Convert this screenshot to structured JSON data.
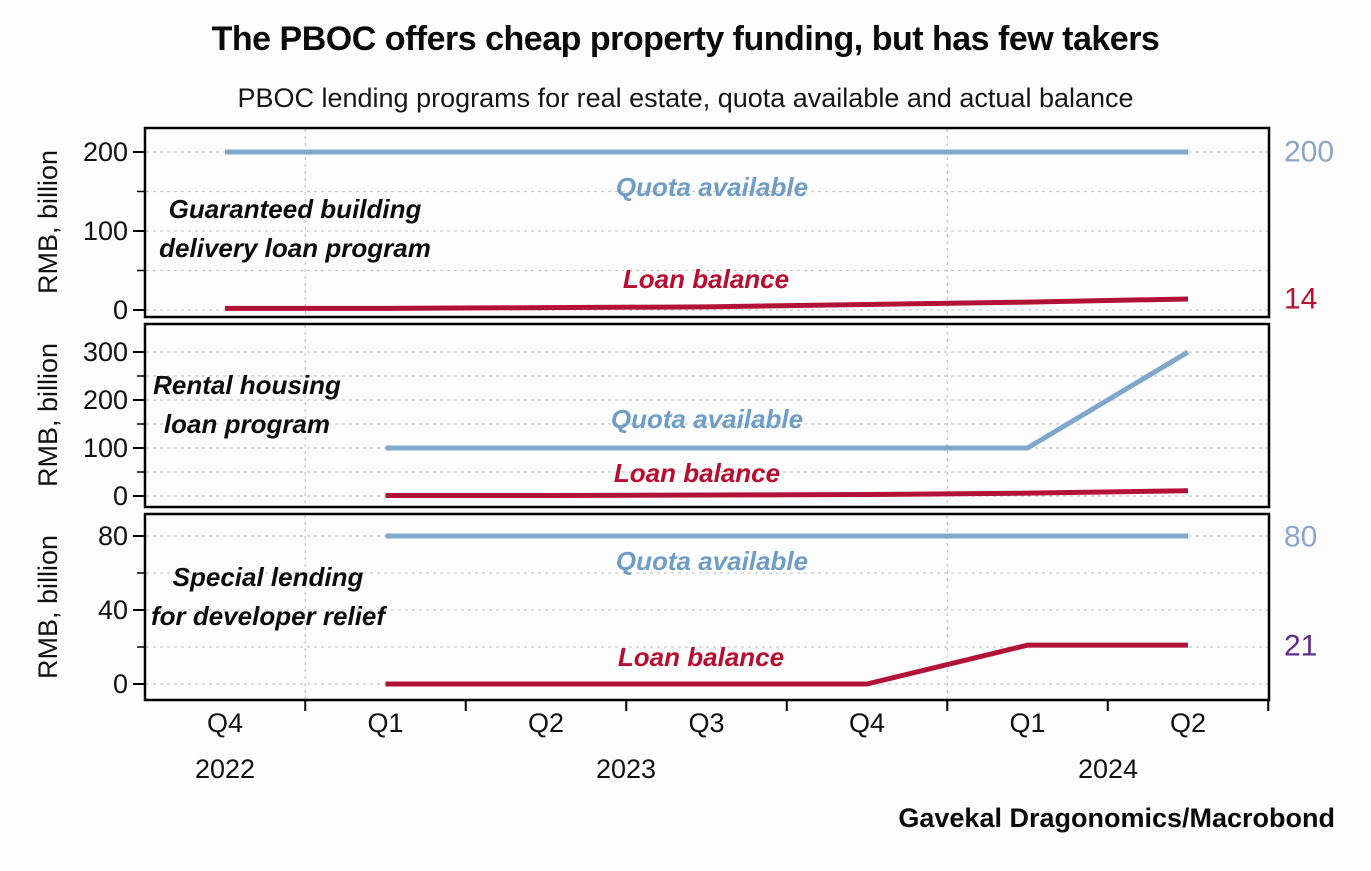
{
  "title": "The PBOC offers cheap property funding, but has few takers",
  "subtitle": "PBOC lending programs for real estate, quota available and actual balance",
  "source": "Gavekal Dragonomics/Macrobond",
  "y_axis_title": "RMB, billion",
  "colors": {
    "quota_line": "#7fa6cc",
    "loan_line": "#b31237",
    "quota_label_text": "#6f9dc6",
    "loan_label_text": "#b60d31",
    "end_label_blue": "#8ba6c9",
    "end_label_red": "#b5122f",
    "end_label_purple": "#5e2b87",
    "gridline": "#c9c9c9",
    "panel_border": "#000000"
  },
  "x_axis": {
    "quarter_labels": [
      "Q4",
      "Q1",
      "Q2",
      "Q3",
      "Q4",
      "Q1",
      "Q2"
    ],
    "year_labels": [
      "2022",
      "2023",
      "2024"
    ]
  },
  "chart_data": [
    {
      "type": "line",
      "title_lines": [
        "Guaranteed building",
        "delivery loan program"
      ],
      "categories": [
        "Q4 2022",
        "Q1 2023",
        "Q2 2023",
        "Q3 2023",
        "Q4 2023",
        "Q1 2024",
        "Q2 2024"
      ],
      "series": [
        {
          "name": "Quota available",
          "color": "#7fa6cc",
          "values": [
            200,
            200,
            200,
            200,
            200,
            200,
            200
          ]
        },
        {
          "name": "Loan balance",
          "color": "#b31237",
          "values": [
            2,
            2,
            3,
            4,
            7,
            10,
            14
          ]
        }
      ],
      "ylabel": "RMB, billion",
      "ylim": [
        0,
        200
      ],
      "yticks": [
        0,
        100,
        200
      ],
      "yticks_minor": [
        50,
        150
      ],
      "grid_step": 50,
      "grid": true,
      "end_labels": [
        {
          "text": "200",
          "value": 200,
          "color": "#8ba6c9"
        },
        {
          "text": "14",
          "value": 14,
          "color": "#b5122f"
        }
      ]
    },
    {
      "type": "line",
      "title_lines": [
        "Rental housing",
        "loan program"
      ],
      "categories": [
        "Q4 2022",
        "Q1 2023",
        "Q2 2023",
        "Q3 2023",
        "Q4 2023",
        "Q1 2024",
        "Q2 2024"
      ],
      "series": [
        {
          "name": "Quota available",
          "color": "#7fa6cc",
          "values": [
            null,
            100,
            100,
            100,
            100,
            100,
            300
          ]
        },
        {
          "name": "Loan balance",
          "color": "#b31237",
          "values": [
            null,
            1,
            1,
            2,
            3,
            6,
            11
          ]
        }
      ],
      "ylabel": "RMB, billion",
      "ylim": [
        0,
        300
      ],
      "yticks": [
        0,
        100,
        200,
        300
      ],
      "yticks_minor": [
        50,
        150,
        250
      ],
      "grid_step": 50,
      "grid": true,
      "end_labels": []
    },
    {
      "type": "line",
      "title_lines": [
        "Special lending",
        "for developer relief"
      ],
      "categories": [
        "Q4 2022",
        "Q1 2023",
        "Q2 2023",
        "Q3 2023",
        "Q4 2023",
        "Q1 2024",
        "Q2 2024"
      ],
      "series": [
        {
          "name": "Quota available",
          "color": "#7fa6cc",
          "values": [
            null,
            80,
            80,
            80,
            80,
            80,
            80
          ]
        },
        {
          "name": "Loan balance",
          "color": "#b31237",
          "values": [
            null,
            0,
            0,
            0,
            0,
            21,
            21
          ]
        }
      ],
      "ylabel": "RMB, billion",
      "ylim": [
        0,
        80
      ],
      "yticks": [
        0,
        40,
        80
      ],
      "yticks_minor": [
        20,
        60
      ],
      "grid_step": 20,
      "grid": true,
      "end_labels": [
        {
          "text": "80",
          "value": 80,
          "color": "#8ba6c9"
        },
        {
          "text": "21",
          "value": 21,
          "color": "#5e2b87"
        }
      ]
    }
  ]
}
